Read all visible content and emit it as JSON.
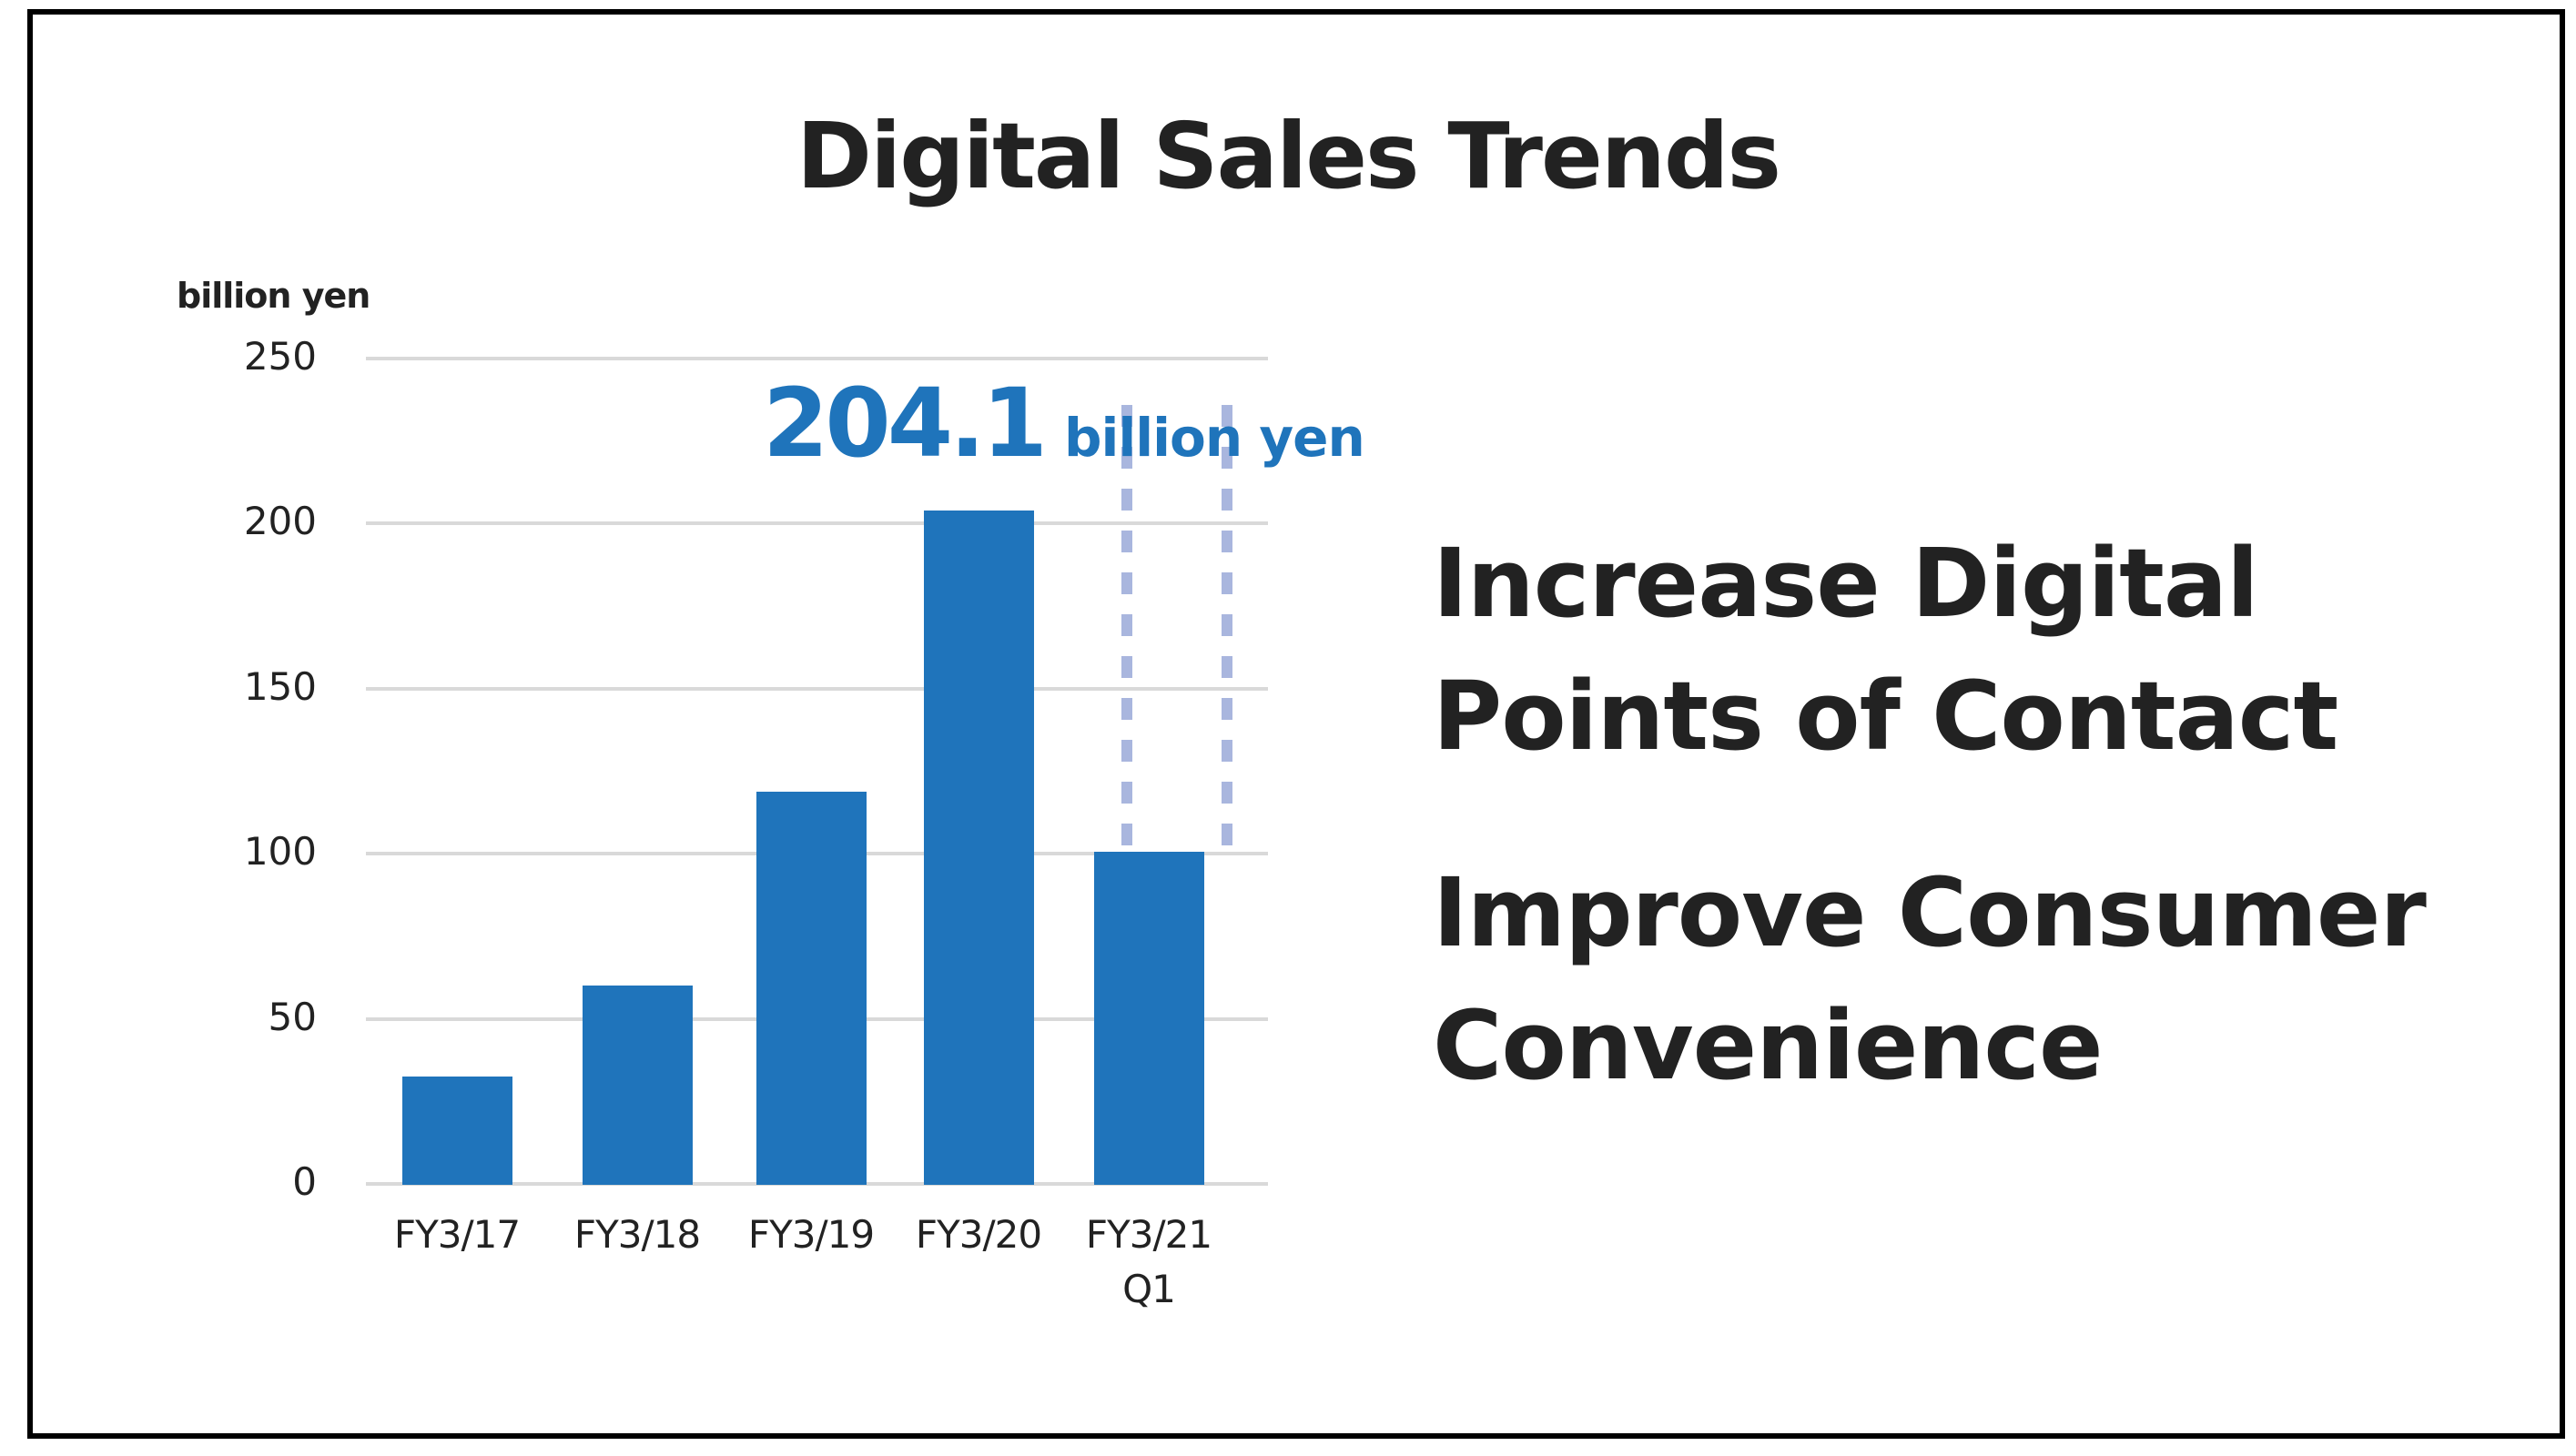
{
  "slide": {
    "title": "Digital Sales Trends",
    "frame_color": "#000000",
    "key_points": [
      {
        "line1": "Increase Digital",
        "line2": "Points of Contact"
      },
      {
        "line1": "Improve Consumer",
        "line2": "Convenience"
      }
    ]
  },
  "chart_data": {
    "type": "bar",
    "title": "Digital Sales Trends",
    "xlabel": "",
    "ylabel": "billion yen",
    "categories": [
      "FY3/17",
      "FY3/18",
      "FY3/19",
      "FY3/20",
      "FY3/21\nQ1"
    ],
    "values": [
      32.5,
      60,
      118.8,
      204.1,
      100.5
    ],
    "ylim": [
      0,
      250
    ],
    "yticks": [
      0,
      50,
      100,
      150,
      200,
      250
    ],
    "grid": true,
    "legend": null,
    "bar_color": "#1f74bb",
    "grid_color": "#d9d9d9",
    "annotations": [
      {
        "text_value": "204.1",
        "text_unit": "billion yen",
        "target": "FY3/20",
        "color": "#1f74bb"
      },
      {
        "type": "dashed-outline",
        "target": "FY3/21\nQ1",
        "description": "dashed lines above FY3/21 Q1 bar indicating full-year projection",
        "color": "#a9b6de"
      }
    ]
  }
}
